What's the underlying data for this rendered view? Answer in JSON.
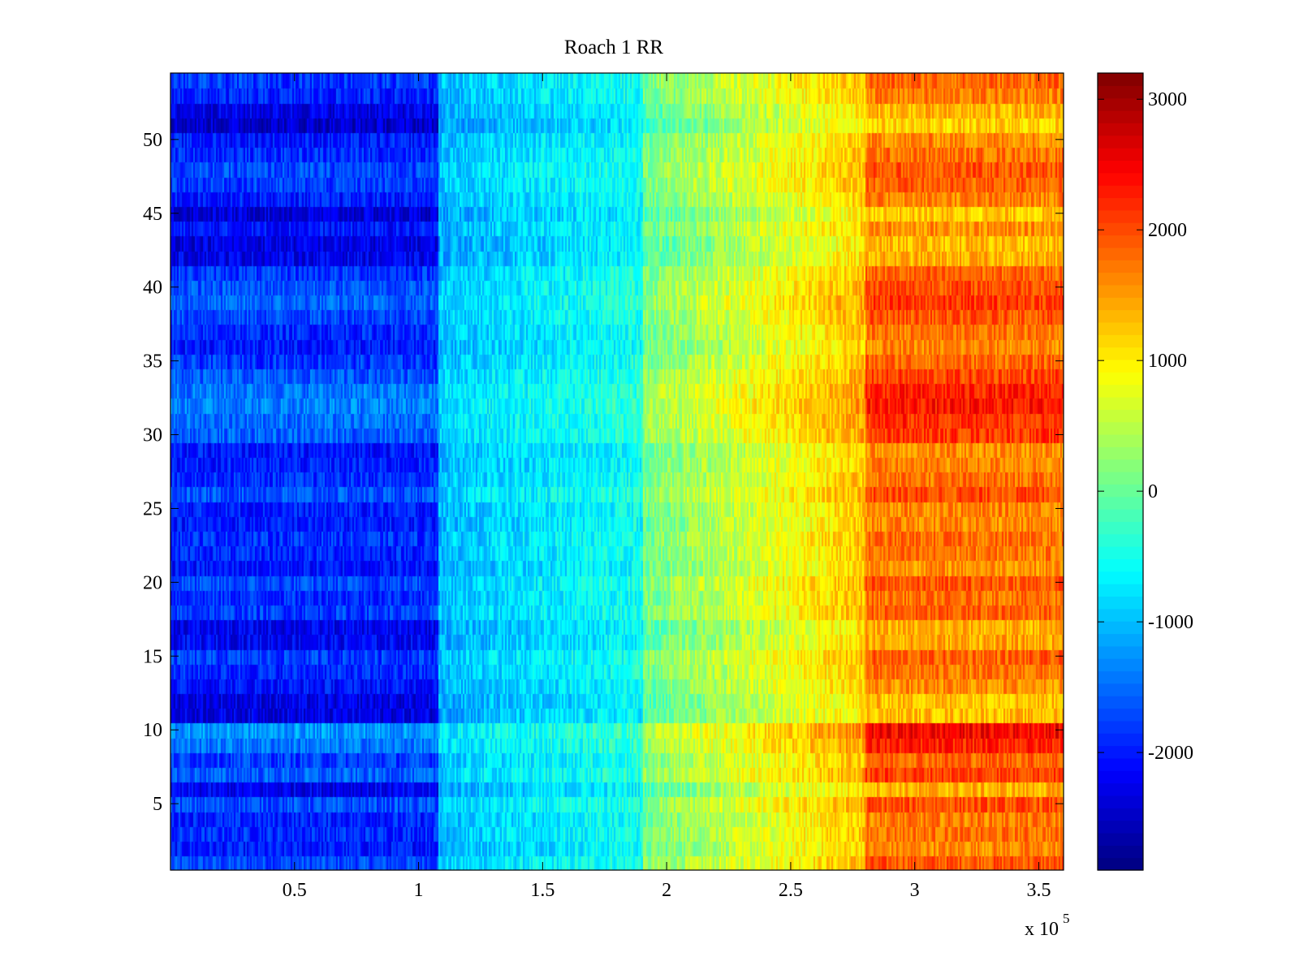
{
  "chart_data": {
    "type": "heatmap",
    "title": "Roach 1 RR",
    "xlabel": "",
    "ylabel": "",
    "x_exponent_label": "x 10",
    "x_exponent": "5",
    "xlim": [
      0,
      3.6
    ],
    "ylim": [
      0.5,
      54.5
    ],
    "xticks": [
      {
        "value": 0.5,
        "label": "0.5"
      },
      {
        "value": 1,
        "label": "1"
      },
      {
        "value": 1.5,
        "label": "1.5"
      },
      {
        "value": 2,
        "label": "2"
      },
      {
        "value": 2.5,
        "label": "2.5"
      },
      {
        "value": 3,
        "label": "3"
      },
      {
        "value": 3.5,
        "label": "3.5"
      }
    ],
    "yticks": [
      {
        "value": 5,
        "label": "5"
      },
      {
        "value": 10,
        "label": "10"
      },
      {
        "value": 15,
        "label": "15"
      },
      {
        "value": 20,
        "label": "20"
      },
      {
        "value": 25,
        "label": "25"
      },
      {
        "value": 30,
        "label": "30"
      },
      {
        "value": 35,
        "label": "35"
      },
      {
        "value": 40,
        "label": "40"
      },
      {
        "value": 45,
        "label": "45"
      },
      {
        "value": 50,
        "label": "50"
      }
    ],
    "rows": 54,
    "colorbar": {
      "colormap": "jet",
      "clim": [
        -2900,
        3200
      ],
      "ticks": [
        {
          "value": -2000,
          "label": "-2000"
        },
        {
          "value": -1000,
          "label": "-1000"
        },
        {
          "value": 0,
          "label": "0"
        },
        {
          "value": 1000,
          "label": "1000"
        },
        {
          "value": 2000,
          "label": "2000"
        },
        {
          "value": 3000,
          "label": "3000"
        }
      ]
    },
    "column_bands": [
      {
        "x_start": 0,
        "x_end": 1.08,
        "mean": -1650
      },
      {
        "x_start": 1.08,
        "x_end": 1.9,
        "mean": -750
      },
      {
        "x_start": 1.9,
        "x_end": 2.8,
        "mean": 750
      },
      {
        "x_start": 2.8,
        "x_end": 3.6,
        "mean": 2000
      }
    ],
    "row_offsets": [
      -0.1,
      -0.55,
      -0.35,
      -0.45,
      -0.05,
      -0.9,
      0.1,
      -0.2,
      0.35,
      0.65,
      -1.0,
      -1.0,
      -0.6,
      -0.4,
      -0.2,
      -0.8,
      -0.9,
      -0.2,
      -0.35,
      -0.1,
      -0.6,
      -0.4,
      -0.3,
      -0.55,
      -0.5,
      0.0,
      -0.35,
      -0.5,
      -0.6,
      0.15,
      0.25,
      0.45,
      0.35,
      0.05,
      -0.25,
      -0.55,
      -0.4,
      -0.1,
      0.15,
      0.0,
      -0.25,
      -0.9,
      -1.0,
      -0.6,
      -1.1,
      -0.5,
      -0.2,
      -0.1,
      -0.35,
      -0.55,
      -1.2,
      -0.95,
      -0.45,
      -0.25
    ]
  }
}
